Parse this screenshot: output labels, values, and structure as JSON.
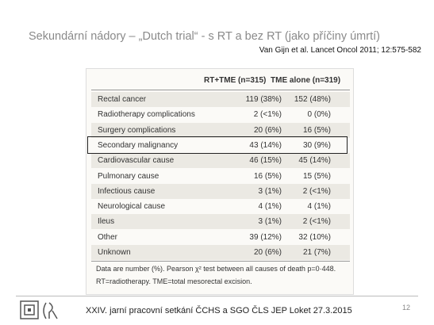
{
  "header": {
    "title": "Sekundární nádory – „Dutch trial“  - s RT a bez RT (jako příčiny úmrtí)",
    "citation": "Van Gijn et al. Lancet Oncol 2011; 12:575-582"
  },
  "table": {
    "columns": [
      "",
      "RT+TME (n=315)",
      "TME alone (n=319)"
    ],
    "rows": [
      [
        "Rectal cancer",
        "119 (38%)",
        "152 (48%)"
      ],
      [
        "Radiotherapy complications",
        "2 (<1%)",
        "0 (0%)"
      ],
      [
        "Surgery complications",
        "20 (6%)",
        "16 (5%)"
      ],
      [
        "Secondary malignancy",
        "43 (14%)",
        "30 (9%)"
      ],
      [
        "Cardiovascular cause",
        "46 (15%)",
        "45 (14%)"
      ],
      [
        "Pulmonary cause",
        "16 (5%)",
        "15 (5%)"
      ],
      [
        "Infectious cause",
        "3 (1%)",
        "2 (<1%)"
      ],
      [
        "Neurological cause",
        "4 (1%)",
        "4 (1%)"
      ],
      [
        "Ileus",
        "3 (1%)",
        "2 (<1%)"
      ],
      [
        "Other",
        "39 (12%)",
        "32 (10%)"
      ],
      [
        "Unknown",
        "20 (6%)",
        "21 (7%)"
      ]
    ],
    "notes": [
      "Data are number (%). Pearson χ² test between all causes of death p=0·448.",
      "RT=radiotherapy. TME=total mesorectal excision."
    ]
  },
  "footer": {
    "text": "XXIV. jarní pracovní setkání  ČCHS a SGO ČLS JEP Loket 27.3.2015",
    "page": "12"
  }
}
